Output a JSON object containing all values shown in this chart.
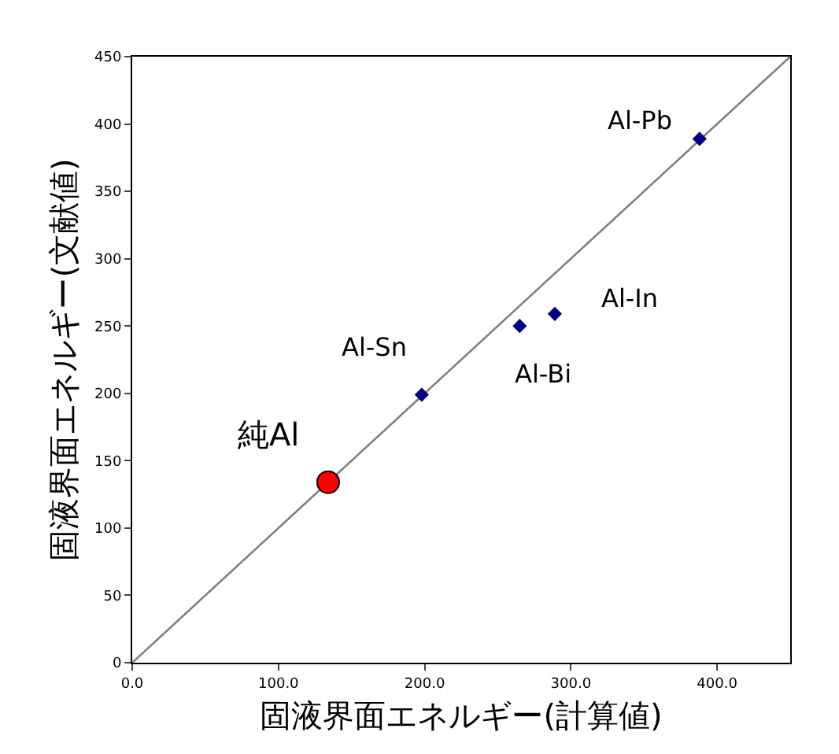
{
  "chart_data": {
    "type": "scatter",
    "xlabel": "固液界面エネルギー(計算値)",
    "ylabel": "固液界面エネルギー(文献値)",
    "xlim": [
      0,
      450
    ],
    "ylim": [
      0,
      450
    ],
    "xticks": [
      {
        "value": 0,
        "label": "0.0"
      },
      {
        "value": 100,
        "label": "100.0"
      },
      {
        "value": 200,
        "label": "200.0"
      },
      {
        "value": 300,
        "label": "300.0"
      },
      {
        "value": 400,
        "label": "400.0"
      }
    ],
    "yticks": [
      0,
      50,
      100,
      150,
      200,
      250,
      300,
      350,
      400,
      450
    ],
    "series": [
      {
        "type": "line",
        "color": "#808080",
        "x": [
          0,
          450
        ],
        "values": [
          0,
          450
        ],
        "marker": "none",
        "line_style": "solid"
      },
      {
        "color": "#000080",
        "x": [
          388,
          198,
          265,
          289
        ],
        "values": [
          389,
          199,
          250,
          259
        ],
        "marker": "diamond"
      },
      {
        "color": "#ff0000",
        "x": [
          134
        ],
        "values": [
          134
        ],
        "marker": "circle"
      }
    ],
    "annotations": [
      {
        "text": "Al-Pb",
        "x": 388,
        "y": 389
      },
      {
        "text": "Al-Sn",
        "x": 198,
        "y": 199
      },
      {
        "text": "Al-Bi",
        "x": 265,
        "y": 250
      },
      {
        "text": "Al-In",
        "x": 289,
        "y": 259
      },
      {
        "text": "純Al",
        "x": 134,
        "y": 134
      }
    ]
  }
}
